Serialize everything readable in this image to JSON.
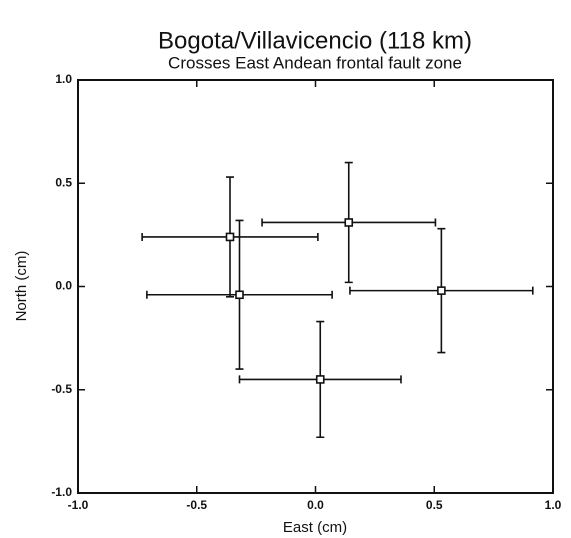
{
  "chart_data": {
    "type": "scatter",
    "title": "Bogota/Villavicencio (118 km)",
    "subtitle": "Crosses East Andean frontal fault zone",
    "xlabel": "East (cm)",
    "ylabel": "North (cm)",
    "x": [
      -0.36,
      -0.32,
      0.14,
      0.53,
      0.02
    ],
    "values": [
      0.24,
      -0.04,
      0.31,
      -0.02,
      -0.45
    ],
    "xerr": [
      0.37,
      0.39,
      0.365,
      0.385,
      0.34
    ],
    "yerr": [
      0.29,
      0.36,
      0.29,
      0.3,
      0.28
    ],
    "color": "#111111",
    "xlim": [
      -1,
      1
    ],
    "ylim": [
      -1,
      1
    ],
    "xticks": [
      {
        "value": -1,
        "label": "-1.0"
      },
      -0.5,
      {
        "value": 0,
        "label": "0.0"
      },
      0.5,
      {
        "value": 1,
        "label": "1.0"
      }
    ],
    "yticks": [
      {
        "value": -1,
        "label": "-1.0"
      },
      -0.5,
      {
        "value": 0,
        "label": "0.0"
      },
      0.5,
      {
        "value": 1,
        "label": "1.0"
      }
    ]
  }
}
